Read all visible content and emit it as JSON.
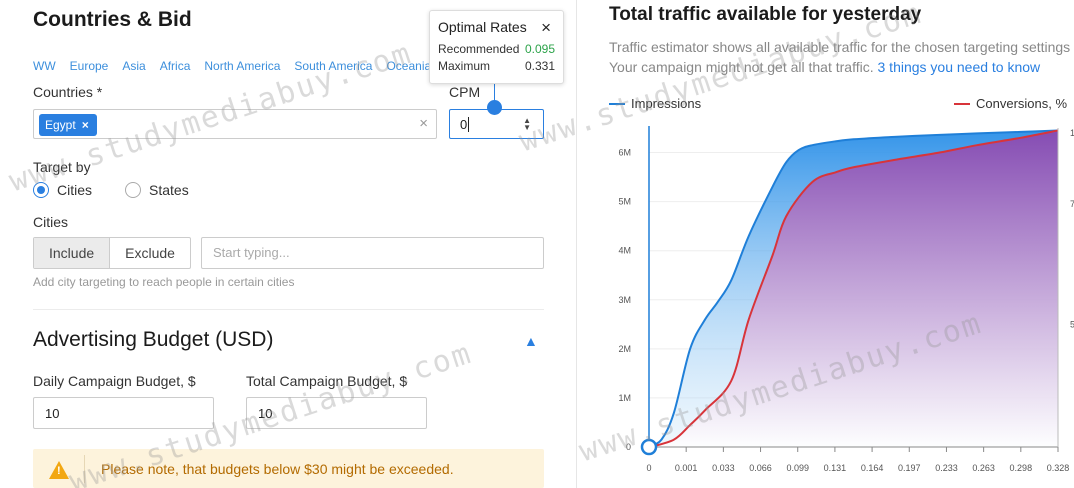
{
  "left": {
    "section_title": "Countries & Bid",
    "regions": [
      "WW",
      "Europe",
      "Asia",
      "Africa",
      "North America",
      "South America",
      "Oceania"
    ],
    "countries_label": "Countries *",
    "selected_country": "Egypt",
    "clear_glyph": "×",
    "cpm_label": "CPM",
    "cpm_value": "0",
    "tooltip": {
      "title": "Optimal Rates",
      "close_glyph": "×",
      "recommended_label": "Recommended",
      "recommended_value": "0.095",
      "maximum_label": "Maximum",
      "maximum_value": "0.331"
    },
    "target_by_label": "Target by",
    "radio_cities": "Cities",
    "radio_states": "States",
    "selected_target": "Cities",
    "cities_label": "Cities",
    "include_label": "Include",
    "exclude_label": "Exclude",
    "cities_placeholder": "Start typing...",
    "cities_hint": "Add city targeting to reach people in certain cities",
    "budget_title": "Advertising Budget (USD)",
    "daily_label": "Daily Campaign Budget, $",
    "daily_value": "10",
    "total_label": "Total Campaign Budget, $",
    "total_value": "10",
    "note_text": "Please note, that budgets below $30 might be exceeded."
  },
  "right": {
    "title": "Total traffic available for yesterday",
    "desc_line1": "Traffic estimator shows all available traffic for the chosen targeting settings",
    "desc_line2": "Your campaign might not get all that traffic.",
    "desc_link": "3 things you need to know",
    "legend_impressions": "Impressions",
    "legend_conversions": "Conversions, %"
  },
  "watermark": "www.studymediabuy.com",
  "colors": {
    "accent": "#2a7fe0",
    "impressions": "#1f7fd8",
    "conversions": "#d8343a",
    "warning_bg": "#fdf3dc",
    "warning_text": "#b36b00",
    "green": "#2ca34a"
  },
  "chart_data": {
    "type": "area",
    "x_ticks": [
      "0",
      "0.001",
      "0.033",
      "0.066",
      "0.099",
      "0.131",
      "0.164",
      "0.197",
      "0.233",
      "0.263",
      "0.298",
      "0.328"
    ],
    "y_ticks": [
      "0",
      "1M",
      "2M",
      "3M",
      "4M",
      "5M",
      "6M"
    ],
    "y_right_ticks": [
      "5",
      "7",
      "1"
    ],
    "ylim": [
      0,
      6500000
    ],
    "series": [
      {
        "name": "Impressions",
        "x": [
          0,
          0.001,
          0.01,
          0.02,
          0.033,
          0.045,
          0.055,
          0.066,
          0.08,
          0.099,
          0.11,
          0.12,
          0.131,
          0.15,
          0.164,
          0.197,
          0.233,
          0.263,
          0.298,
          0.328
        ],
        "values": [
          0,
          30000,
          150000,
          700000,
          2000000,
          2600000,
          2950000,
          3400000,
          4300000,
          5300000,
          5800000,
          6050000,
          6150000,
          6230000,
          6270000,
          6320000,
          6360000,
          6390000,
          6420000,
          6450000
        ]
      },
      {
        "name": "Conversions, %",
        "x": [
          0,
          0.001,
          0.02,
          0.033,
          0.045,
          0.066,
          0.08,
          0.099,
          0.11,
          0.131,
          0.15,
          0.164,
          0.197,
          0.233,
          0.263,
          0.298,
          0.328
        ],
        "values": [
          0,
          0,
          150000,
          450000,
          750000,
          1350000,
          2600000,
          3900000,
          4700000,
          5400000,
          5600000,
          5700000,
          5850000,
          6000000,
          6150000,
          6300000,
          6450000
        ]
      }
    ]
  }
}
